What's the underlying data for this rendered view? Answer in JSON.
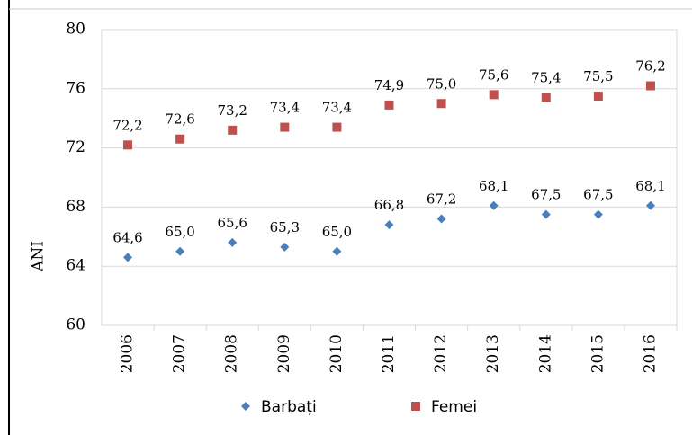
{
  "chart_data": {
    "type": "scatter",
    "y_label": "ANI",
    "categories": [
      "2006",
      "2007",
      "2008",
      "2009",
      "2010",
      "2011",
      "2012",
      "2013",
      "2014",
      "2015",
      "2016"
    ],
    "series": [
      {
        "name": "Barbați",
        "color": "#4a7ebb",
        "marker": "diamond",
        "values": [
          64.6,
          65.0,
          65.6,
          65.3,
          65.0,
          66.8,
          67.2,
          68.1,
          67.5,
          67.5,
          68.1
        ],
        "value_labels": [
          "64,6",
          "65,0",
          "65,6",
          "65,3",
          "65,0",
          "66,8",
          "67,2",
          "68,1",
          "67,5",
          "67,5",
          "68,1"
        ]
      },
      {
        "name": "Femei",
        "color": "#c0504d",
        "marker": "square",
        "values": [
          72.2,
          72.6,
          73.2,
          73.4,
          73.4,
          74.9,
          75.0,
          75.6,
          75.4,
          75.5,
          76.2
        ],
        "value_labels": [
          "72,2",
          "72,6",
          "73,2",
          "73,4",
          "73,4",
          "74,9",
          "75,0",
          "75,6",
          "75,4",
          "75,5",
          "76,2"
        ]
      }
    ],
    "ylim": [
      60,
      80
    ],
    "yticks": [
      60,
      64,
      68,
      72,
      76,
      80
    ],
    "grid": true,
    "legend": "bottom"
  }
}
